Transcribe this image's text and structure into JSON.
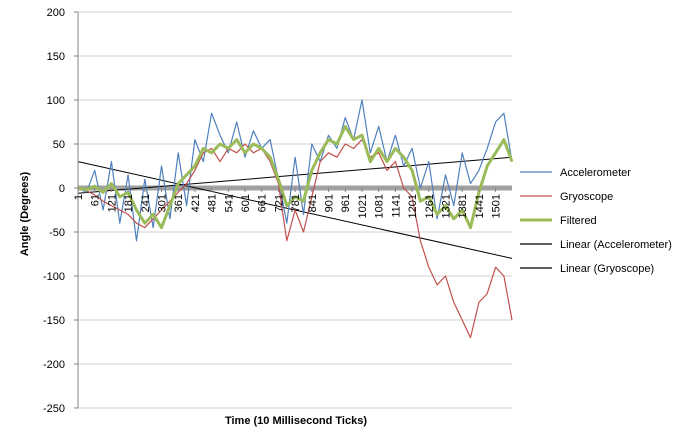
{
  "chart_data": {
    "type": "line",
    "title": "",
    "xlabel": "Time (10 Millisecond  Ticks)",
    "ylabel": "Angle (Degrees)",
    "ylim": [
      -250,
      200
    ],
    "y_ticks": [
      200,
      150,
      100,
      50,
      0,
      -50,
      -100,
      -150,
      -200,
      -250
    ],
    "xlim": [
      1,
      1560
    ],
    "x_tick_labels": [
      "1",
      "61",
      "121",
      "181",
      "241",
      "301",
      "361",
      "421",
      "481",
      "541",
      "601",
      "661",
      "721",
      "781",
      "841",
      "901",
      "961",
      "1021",
      "1081",
      "1141",
      "1201",
      "1261",
      "1321",
      "1381",
      "1441",
      "1501"
    ],
    "grid": "horizontal",
    "legend_position": "right",
    "colors": {
      "accelerometer": "#4f81bd",
      "gyroscope": "#c0504d",
      "filtered": "#9bbb59",
      "trend": "#000000",
      "zero_band": "#a0a0a0",
      "grid": "#d0d0d0"
    },
    "series": [
      {
        "name": "Accelerometer",
        "x": [
          1,
          31,
          61,
          91,
          121,
          151,
          181,
          211,
          241,
          271,
          301,
          331,
          361,
          391,
          421,
          451,
          481,
          511,
          541,
          571,
          601,
          631,
          661,
          691,
          721,
          751,
          781,
          811,
          841,
          871,
          901,
          931,
          961,
          991,
          1021,
          1051,
          1081,
          1111,
          1141,
          1171,
          1201,
          1231,
          1261,
          1291,
          1321,
          1351,
          1381,
          1411,
          1441,
          1471,
          1501,
          1531,
          1560
        ],
        "values": [
          0,
          -5,
          20,
          -25,
          30,
          -40,
          15,
          -60,
          10,
          -45,
          25,
          -35,
          40,
          -20,
          55,
          30,
          85,
          60,
          40,
          75,
          35,
          65,
          45,
          55,
          10,
          -40,
          35,
          -30,
          50,
          30,
          60,
          45,
          80,
          55,
          100,
          40,
          70,
          30,
          60,
          25,
          45,
          0,
          30,
          -35,
          15,
          -20,
          40,
          5,
          20,
          45,
          75,
          85,
          30
        ]
      },
      {
        "name": "Gryoscope",
        "x": [
          1,
          31,
          61,
          91,
          121,
          151,
          181,
          211,
          241,
          271,
          301,
          331,
          361,
          391,
          421,
          451,
          481,
          511,
          541,
          571,
          601,
          631,
          661,
          691,
          721,
          751,
          781,
          811,
          841,
          871,
          901,
          931,
          961,
          991,
          1021,
          1051,
          1081,
          1111,
          1141,
          1171,
          1201,
          1231,
          1261,
          1291,
          1321,
          1351,
          1381,
          1411,
          1441,
          1471,
          1501,
          1531,
          1560
        ],
        "values": [
          0,
          -3,
          -8,
          -15,
          -20,
          -25,
          -30,
          -40,
          -45,
          -35,
          -25,
          -15,
          -5,
          5,
          20,
          40,
          45,
          30,
          45,
          40,
          50,
          40,
          45,
          30,
          5,
          -60,
          -25,
          -50,
          -10,
          30,
          40,
          35,
          50,
          45,
          55,
          35,
          40,
          20,
          30,
          0,
          -10,
          -60,
          -90,
          -110,
          -100,
          -130,
          -150,
          -170,
          -130,
          -120,
          -90,
          -100,
          -150
        ]
      },
      {
        "name": "Filtered",
        "x": [
          1,
          31,
          61,
          91,
          121,
          151,
          181,
          211,
          241,
          271,
          301,
          331,
          361,
          391,
          421,
          451,
          481,
          511,
          541,
          571,
          601,
          631,
          661,
          691,
          721,
          751,
          781,
          811,
          841,
          871,
          901,
          931,
          961,
          991,
          1021,
          1051,
          1081,
          1111,
          1141,
          1171,
          1201,
          1231,
          1261,
          1291,
          1321,
          1351,
          1381,
          1411,
          1441,
          1471,
          1501,
          1531,
          1560
        ],
        "values": [
          0,
          -2,
          2,
          -5,
          5,
          -10,
          -5,
          -25,
          -40,
          -30,
          -45,
          -20,
          5,
          15,
          25,
          45,
          40,
          50,
          45,
          55,
          40,
          50,
          45,
          35,
          10,
          -20,
          -10,
          -15,
          20,
          40,
          55,
          50,
          70,
          55,
          60,
          30,
          45,
          30,
          45,
          35,
          20,
          -15,
          -10,
          -30,
          -20,
          -35,
          -25,
          -45,
          -5,
          25,
          40,
          55,
          30
        ]
      },
      {
        "name": "Linear (Accelerometer)",
        "x": [
          1,
          1560
        ],
        "values": [
          -6,
          35
        ]
      },
      {
        "name": "Linear (Gryoscope)",
        "x": [
          1,
          1560
        ],
        "values": [
          30,
          -80
        ]
      }
    ]
  }
}
